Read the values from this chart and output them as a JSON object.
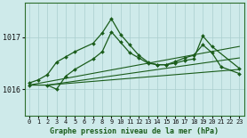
{
  "bg_color": "#ceeaea",
  "grid_color": "#aacece",
  "line_color": "#1a5c1a",
  "title": "Graphe pression niveau de la mer (hPa)",
  "xlim": [
    -0.5,
    23.5
  ],
  "ylim": [
    1015.5,
    1017.65
  ],
  "yticks": [
    1016,
    1017
  ],
  "xticks": [
    0,
    1,
    2,
    3,
    4,
    5,
    6,
    7,
    8,
    9,
    10,
    11,
    12,
    13,
    14,
    15,
    16,
    17,
    18,
    19,
    20,
    21,
    22,
    23
  ],
  "line1_x": [
    0,
    1,
    2,
    3,
    4,
    5,
    7,
    8,
    9,
    10,
    11,
    12,
    13,
    14,
    15,
    16,
    17,
    18,
    19,
    20,
    23
  ],
  "line1_y": [
    1016.12,
    1016.18,
    1016.28,
    1016.52,
    1016.62,
    1016.72,
    1016.88,
    1017.08,
    1017.35,
    1017.05,
    1016.85,
    1016.65,
    1016.52,
    1016.47,
    1016.47,
    1016.5,
    1016.55,
    1016.58,
    1017.02,
    1016.82,
    1016.4
  ],
  "line2_x": [
    0,
    2,
    3,
    4,
    5,
    7,
    8,
    9,
    10,
    11,
    12,
    13,
    14,
    15,
    16,
    17,
    18,
    19,
    20,
    21,
    23
  ],
  "line2_y": [
    1016.08,
    1016.08,
    1016.0,
    1016.25,
    1016.38,
    1016.58,
    1016.72,
    1017.1,
    1016.9,
    1016.7,
    1016.6,
    1016.5,
    1016.47,
    1016.47,
    1016.53,
    1016.6,
    1016.65,
    1016.85,
    1016.7,
    1016.43,
    1016.3
  ],
  "trend1_x": [
    0,
    23
  ],
  "trend1_y": [
    1016.08,
    1016.82
  ],
  "trend2_x": [
    2,
    23
  ],
  "trend2_y": [
    1016.08,
    1016.6
  ],
  "trend3_x": [
    2,
    23
  ],
  "trend3_y": [
    1016.08,
    1016.38
  ]
}
